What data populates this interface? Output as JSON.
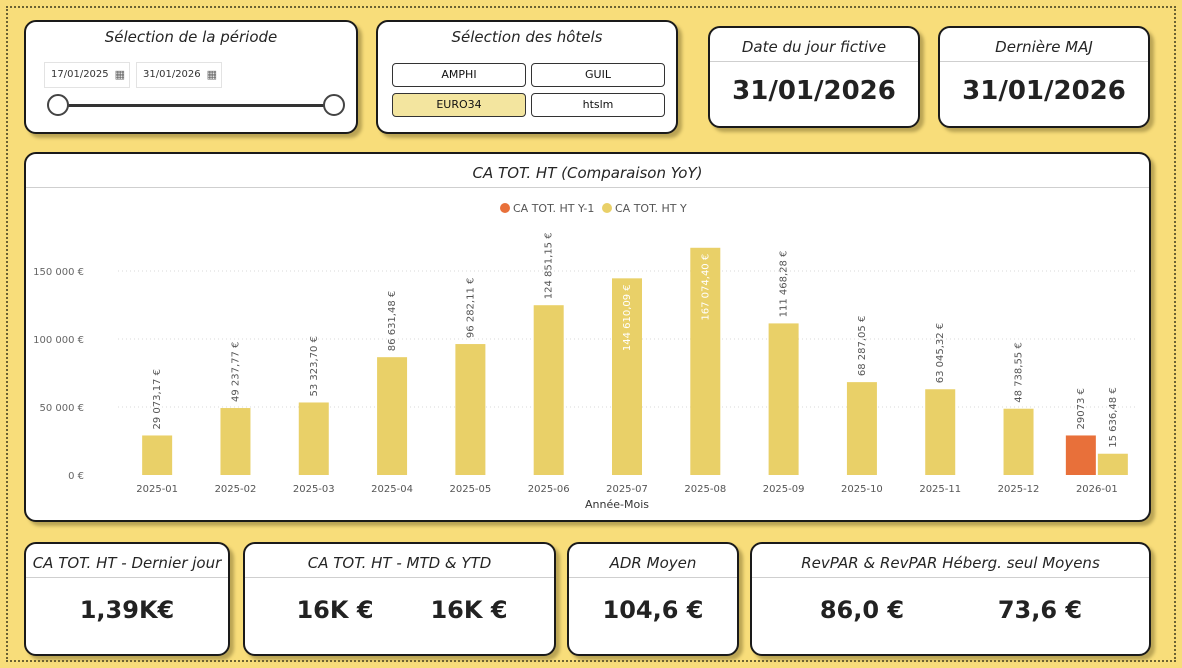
{
  "period_slicer": {
    "title": "Sélection de la période",
    "start_date": "17/01/2025",
    "end_date": "31/01/2026",
    "calendar_icon": "calendar-icon"
  },
  "hotel_slicer": {
    "title": "Sélection des hôtels",
    "hotels": [
      {
        "label": "AMPHI",
        "selected": false
      },
      {
        "label": "GUIL",
        "selected": false
      },
      {
        "label": "EURO34",
        "selected": true
      },
      {
        "label": "htslm",
        "selected": false
      }
    ]
  },
  "fictive_date": {
    "title": "Date du jour fictive",
    "value": "31/01/2026"
  },
  "last_update": {
    "title": "Dernière MAJ",
    "value": "31/01/2026"
  },
  "kpis": {
    "last_day": {
      "title": "CA TOT. HT - Dernier jour",
      "value": "1,39K€"
    },
    "mtd_ytd": {
      "title": "CA TOT. HT - MTD & YTD",
      "mtd": "16K €",
      "ytd": "16K €"
    },
    "adr": {
      "title": "ADR Moyen",
      "value": "104,6 €"
    },
    "revpar": {
      "title": "RevPAR & RevPAR Héberg. seul Moyens",
      "revpar": "86,0 €",
      "revpar_heb": "73,6 €"
    }
  },
  "chart_data": {
    "type": "bar",
    "title": "CA TOT. HT (Comparaison YoY)",
    "xlabel": "Année-Mois",
    "ylabel": "",
    "categories": [
      "2025-01",
      "2025-02",
      "2025-03",
      "2025-04",
      "2025-05",
      "2025-06",
      "2025-07",
      "2025-08",
      "2025-09",
      "2025-10",
      "2025-11",
      "2025-12",
      "2026-01"
    ],
    "series": [
      {
        "name": "CA TOT. HT Y-1",
        "color": "#e8703a",
        "values": [
          null,
          null,
          null,
          null,
          null,
          null,
          null,
          null,
          null,
          null,
          null,
          null,
          29073
        ],
        "labels": [
          "",
          "",
          "",
          "",
          "",
          "",
          "",
          "",
          "",
          "",
          "",
          "",
          "29073 €"
        ]
      },
      {
        "name": "CA TOT. HT Y",
        "color": "#e9d068",
        "values": [
          29073.17,
          49237.77,
          53323.7,
          86631.48,
          96282.11,
          124851.15,
          144610.09,
          167074.4,
          111468.28,
          68287.05,
          63045.32,
          48738.55,
          15636.48
        ],
        "labels": [
          "29 073,17 €",
          "49 237,77 €",
          "53 323,70 €",
          "86 631,48 €",
          "96 282,11 €",
          "124 851,15 €",
          "144 610,09 €",
          "167 074,40 €",
          "111 468,28 €",
          "68 287,05 €",
          "63 045,32 €",
          "48 738,55 €",
          "15 636,48 €"
        ]
      }
    ],
    "yticks": [
      0,
      50000,
      100000,
      150000
    ],
    "ytick_labels": [
      "0 €",
      "50 000 €",
      "100 000 €",
      "150 000 €"
    ],
    "ylim": [
      0,
      170000
    ],
    "legend_position": "top-center",
    "grid": true
  }
}
